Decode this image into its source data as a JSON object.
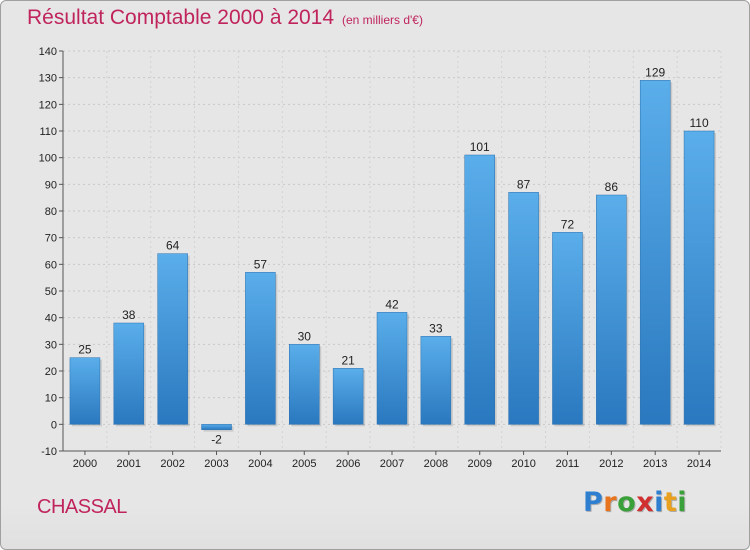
{
  "chart_data": {
    "type": "bar",
    "title": "Résultat Comptable 2000 à 2014",
    "subtitle": "(en milliers d'€)",
    "categories": [
      "2000",
      "2001",
      "2002",
      "2003",
      "2004",
      "2005",
      "2006",
      "2007",
      "2008",
      "2009",
      "2010",
      "2011",
      "2012",
      "2013",
      "2014"
    ],
    "values": [
      25,
      38,
      64,
      -2,
      57,
      30,
      21,
      42,
      33,
      101,
      87,
      72,
      86,
      129,
      110
    ],
    "ylim": [
      -10,
      140
    ],
    "yticks": [
      -10,
      0,
      10,
      20,
      30,
      40,
      50,
      60,
      70,
      80,
      90,
      100,
      110,
      120,
      130,
      140
    ],
    "grid": true,
    "bar_color": "#4a9de0"
  },
  "footer": {
    "town": "CHASSAL",
    "logo_letters": [
      "P",
      "r",
      "o",
      "x",
      "i",
      "t",
      "i"
    ],
    "logo_colors": [
      "#2f7fd0",
      "#e8741e",
      "#3aa03a",
      "#d03030",
      "#2f7fd0",
      "#e8a01e",
      "#3aa03a"
    ]
  }
}
